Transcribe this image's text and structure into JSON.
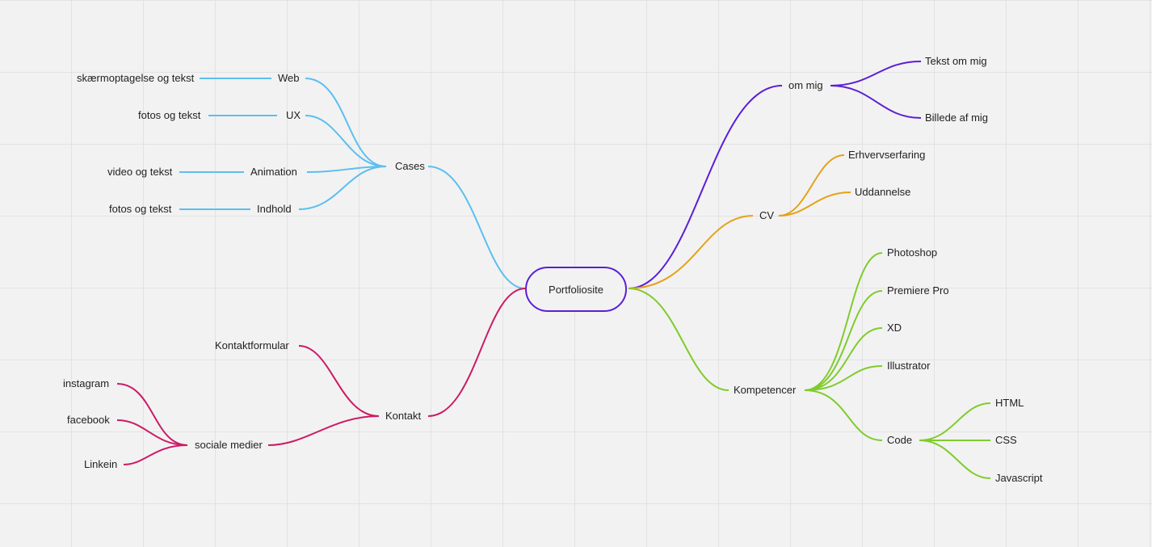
{
  "colors": {
    "cases": "#5bbff0",
    "kontakt": "#cc1a66",
    "om_mig": "#5b1fd6",
    "cv": "#e5a21a",
    "kompetencer": "#7fcc2b",
    "center_border": "#5b1fd6"
  },
  "root": "Portfoliosite",
  "cases": {
    "label": "Cases",
    "children": [
      {
        "label": "Web",
        "detail": "skærmoptagelse og tekst"
      },
      {
        "label": "UX",
        "detail": "fotos og tekst"
      },
      {
        "label": "Animation",
        "detail": "video og tekst"
      },
      {
        "label": "Indhold",
        "detail": "fotos og tekst"
      }
    ]
  },
  "kontakt": {
    "label": "Kontakt",
    "kontaktformular": "Kontaktformular",
    "sociale": {
      "label": "sociale medier",
      "children": [
        "instagram",
        "facebook",
        "Linkein"
      ]
    }
  },
  "om_mig": {
    "label": "om mig",
    "children": [
      "Tekst om mig",
      "Billede af mig"
    ]
  },
  "cv": {
    "label": "CV",
    "children": [
      "Erhvervserfaring",
      "Uddannelse"
    ]
  },
  "kompetencer": {
    "label": "Kompetencer",
    "children": [
      "Photoshop",
      "Premiere Pro",
      "XD",
      "Illustrator"
    ],
    "code": {
      "label": "Code",
      "children": [
        "HTML",
        "CSS",
        "Javascript"
      ]
    }
  }
}
